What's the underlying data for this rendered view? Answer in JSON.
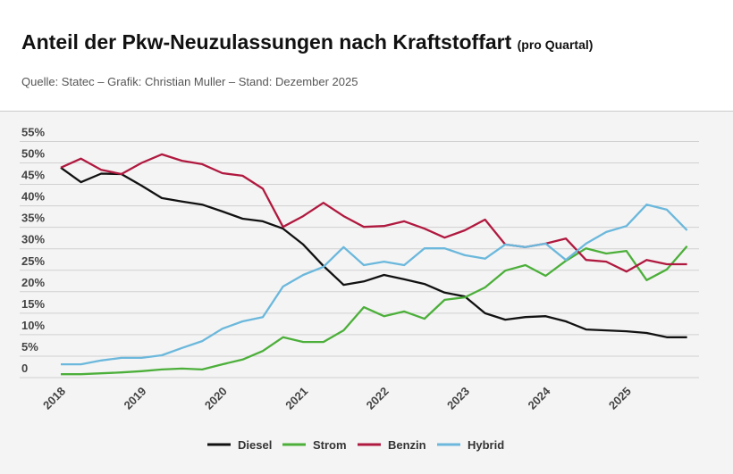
{
  "header": {
    "title": "Anteil der Pkw-Neuzulassungen nach Kraftstoffart",
    "title_suffix": "(pro Quartal)",
    "subtitle": "Quelle: Statec – Grafik: Christian Muller – Stand: Dezember 2025"
  },
  "chart_data": {
    "type": "line",
    "title": "Anteil der Pkw-Neuzulassungen nach Kraftstoffart (pro Quartal)",
    "x_ticks": [
      "2018",
      "2019",
      "2020",
      "2021",
      "2022",
      "2023",
      "2024",
      "2025"
    ],
    "y_ticks": [
      "0",
      "5%",
      "10%",
      "15%",
      "20%",
      "25%",
      "30%",
      "35%",
      "40%",
      "45%",
      "50%",
      "55%"
    ],
    "ylim": [
      0,
      55
    ],
    "grid": true,
    "legend_position": "bottom",
    "x": [
      "2018 Q1",
      "2018 Q2",
      "2018 Q3",
      "2018 Q4",
      "2019 Q1",
      "2019 Q2",
      "2019 Q3",
      "2019 Q4",
      "2020 Q1",
      "2020 Q2",
      "2020 Q3",
      "2020 Q4",
      "2021 Q1",
      "2021 Q2",
      "2021 Q3",
      "2021 Q4",
      "2022 Q1",
      "2022 Q2",
      "2022 Q3",
      "2022 Q4",
      "2023 Q1",
      "2023 Q2",
      "2023 Q3",
      "2023 Q4",
      "2024 Q1",
      "2024 Q2",
      "2024 Q3",
      "2024 Q4",
      "2025 Q1",
      "2025 Q2",
      "2025 Q3",
      "2025 Q4"
    ],
    "series": [
      {
        "name": "Diesel",
        "color": "#111111",
        "values": [
          48.9,
          45.5,
          47.5,
          47.4,
          44.7,
          41.8,
          41,
          40.3,
          38.7,
          37,
          36.4,
          34.7,
          31,
          26,
          21.6,
          22.4,
          23.9,
          22.9,
          21.8,
          19.8,
          18.9,
          15,
          13.5,
          14.1,
          14.3,
          13.1,
          11.2,
          11,
          10.8,
          10.4,
          9.4,
          9.4
        ]
      },
      {
        "name": "Strom",
        "color": "#4caf3a",
        "values": [
          0.8,
          0.8,
          1,
          1.2,
          1.5,
          1.9,
          2.1,
          1.9,
          3.1,
          4.2,
          6.2,
          9.4,
          8.3,
          8.3,
          11,
          16.4,
          14.3,
          15.4,
          13.7,
          18.1,
          18.7,
          21,
          24.9,
          26.2,
          23.7,
          27.2,
          30.1,
          28.9,
          29.5,
          22.7,
          25.2,
          30.6
        ]
      },
      {
        "name": "Benzin",
        "color": "#b0193f",
        "values": [
          48.9,
          51,
          48.4,
          47.4,
          50,
          52,
          50.5,
          49.7,
          47.6,
          47,
          44,
          35.1,
          37.6,
          40.7,
          37.6,
          35.1,
          35.3,
          36.4,
          34.7,
          32.6,
          34.3,
          36.8,
          31,
          30.4,
          31.2,
          32.4,
          27.4,
          27,
          24.7,
          27.4,
          26.4,
          26.4
        ]
      },
      {
        "name": "Hybrid",
        "color": "#6bb8dc",
        "values": [
          3.1,
          3.1,
          4,
          4.6,
          4.6,
          5.2,
          6.9,
          8.5,
          11.4,
          13.1,
          14.1,
          21.2,
          23.9,
          25.8,
          30.4,
          26.2,
          27,
          26.2,
          30.1,
          30.1,
          28.5,
          27.7,
          31,
          30.4,
          31.2,
          27.4,
          31.2,
          33.9,
          35.3,
          40.3,
          39.1,
          34.3
        ]
      }
    ]
  }
}
